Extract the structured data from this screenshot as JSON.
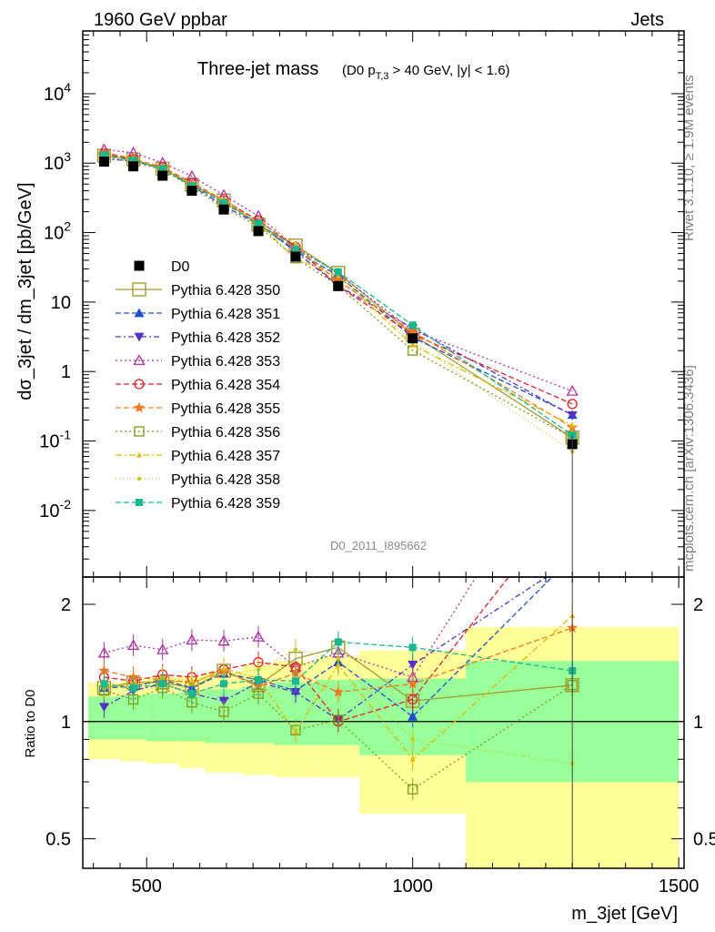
{
  "header": {
    "left": "1960 GeV ppbar",
    "right": "Jets",
    "side_rivet": "Rivet 3.1.10, ≥ 1.9M events",
    "side_mcplots": "mcplots.cern.ch [arXiv:1306.3436]",
    "analysis_id": "D0_2011_I895662"
  },
  "title": {
    "main": "Three-jet mass",
    "cond_prefix": "(D0 p",
    "cond_sub": "T,3",
    "cond_suffix": " > 40 GeV, |y| < 1.6)"
  },
  "axes": {
    "ylabel_main": "dσ_3jet / dm_3jet [pb/GeV]",
    "ylabel_ratio": "Ratio to D0",
    "xlabel": "m_3jet [GeV]",
    "x_ticks": [
      "500",
      "1000",
      "1500"
    ],
    "y_ticks_main": [
      {
        "base": "10",
        "exp": "-2",
        "value": 0.01
      },
      {
        "base": "10",
        "exp": "-1",
        "value": 0.1
      },
      {
        "base": "1",
        "exp": "",
        "value": 1
      },
      {
        "base": "10",
        "exp": "",
        "value": 10
      },
      {
        "base": "10",
        "exp": "2",
        "value": 100
      },
      {
        "base": "10",
        "exp": "3",
        "value": 1000
      },
      {
        "base": "10",
        "exp": "4",
        "value": 10000
      }
    ],
    "y_ticks_ratio": [
      "0.5",
      "1",
      "2"
    ]
  },
  "chart_data": {
    "type": "line",
    "x_scale": "linear",
    "y_scale_main": "log",
    "y_scale_ratio": "log",
    "xlim": [
      380,
      1510
    ],
    "ylim_main": [
      0.0011,
      80000
    ],
    "ylim_ratio": [
      0.42,
      2.35
    ],
    "legend_position": "left-center",
    "grid": false,
    "x": [
      420,
      475,
      530,
      585,
      645,
      710,
      780,
      860,
      1000,
      1300
    ],
    "bin_edges": [
      390,
      450,
      500,
      560,
      610,
      680,
      740,
      820,
      900,
      1100,
      1500
    ],
    "data": {
      "name": "D0",
      "values": [
        1050,
        900,
        660,
        400,
        215,
        105,
        45,
        17,
        3.0,
        0.09
      ],
      "band_inner": [
        [
          0.9,
          1.16
        ],
        [
          0.9,
          1.17
        ],
        [
          0.89,
          1.18
        ],
        [
          0.89,
          1.19
        ],
        [
          0.88,
          1.21
        ],
        [
          0.88,
          1.23
        ],
        [
          0.87,
          1.26
        ],
        [
          0.87,
          1.28
        ],
        [
          0.82,
          1.29
        ],
        [
          0.7,
          1.43
        ]
      ],
      "band_outer": [
        [
          0.8,
          1.26
        ],
        [
          0.79,
          1.27
        ],
        [
          0.78,
          1.3
        ],
        [
          0.76,
          1.31
        ],
        [
          0.74,
          1.34
        ],
        [
          0.73,
          1.4
        ],
        [
          0.72,
          1.43
        ],
        [
          0.72,
          1.47
        ],
        [
          0.58,
          1.52
        ],
        [
          0.33,
          1.75
        ]
      ]
    },
    "series": [
      {
        "name": "Pythia 6.428 350",
        "color": "#a59a31",
        "marker": "square-open-big",
        "dash": "solid",
        "ratio": [
          1.22,
          1.26,
          1.26,
          1.22,
          1.35,
          1.24,
          1.45,
          1.55,
          1.13,
          1.24
        ]
      },
      {
        "name": "Pythia 6.428 351",
        "color": "#1f4fcc",
        "marker": "triangle-up",
        "dash": "6,3",
        "ratio": [
          1.22,
          1.23,
          1.28,
          1.22,
          1.33,
          1.28,
          1.2,
          1.42,
          1.03,
          2.65
        ]
      },
      {
        "name": "Pythia 6.428 352",
        "color": "#5531c4",
        "marker": "triangle-down",
        "dash": "6,3,2,3",
        "ratio": [
          1.09,
          1.2,
          1.25,
          1.18,
          1.13,
          1.26,
          1.19,
          1.01,
          1.4,
          2.6
        ]
      },
      {
        "name": "Pythia 6.428 353",
        "color": "#b02fa6",
        "marker": "triangle-up-open",
        "dash": "2,3",
        "ratio": [
          1.5,
          1.57,
          1.53,
          1.62,
          1.61,
          1.65,
          1.38,
          1.5,
          1.3,
          5.8
        ]
      },
      {
        "name": "Pythia 6.428 354",
        "color": "#e0202a",
        "marker": "circle-open",
        "dash": "6,3",
        "ratio": [
          1.3,
          1.27,
          1.32,
          1.3,
          1.36,
          1.42,
          1.38,
          1.0,
          1.14,
          3.8
        ]
      },
      {
        "name": "Pythia 6.428 355",
        "color": "#f07820",
        "marker": "star",
        "dash": "6,3",
        "ratio": [
          1.35,
          1.3,
          1.28,
          1.26,
          1.35,
          1.23,
          1.33,
          1.19,
          1.25,
          1.74
        ]
      },
      {
        "name": "Pythia 6.428 356",
        "color": "#7a9a1a",
        "marker": "square-open",
        "dash": "2,3",
        "ratio": [
          1.2,
          1.14,
          1.22,
          1.12,
          1.06,
          1.18,
          0.95,
          1.01,
          0.67,
          1.24
        ]
      },
      {
        "name": "Pythia 6.428 357",
        "color": "#e0b800",
        "marker": "tri-small",
        "dash": "7,3,2,3",
        "ratio": [
          1.22,
          1.25,
          1.28,
          1.25,
          1.37,
          1.29,
          0.94,
          1.4,
          0.8,
          1.87
        ]
      },
      {
        "name": "Pythia 6.428 358",
        "color": "#c8c81e",
        "marker": "dot",
        "dash": "1,3",
        "ratio": [
          1.24,
          1.22,
          1.3,
          1.27,
          1.32,
          1.36,
          1.53,
          1.45,
          0.9,
          0.78
        ]
      },
      {
        "name": "Pythia 6.428 359",
        "color": "#18b890",
        "marker": "square-small",
        "dash": "6,3",
        "ratio": [
          1.25,
          1.22,
          1.25,
          1.18,
          1.25,
          1.28,
          1.27,
          1.6,
          1.55,
          1.35
        ]
      }
    ]
  }
}
